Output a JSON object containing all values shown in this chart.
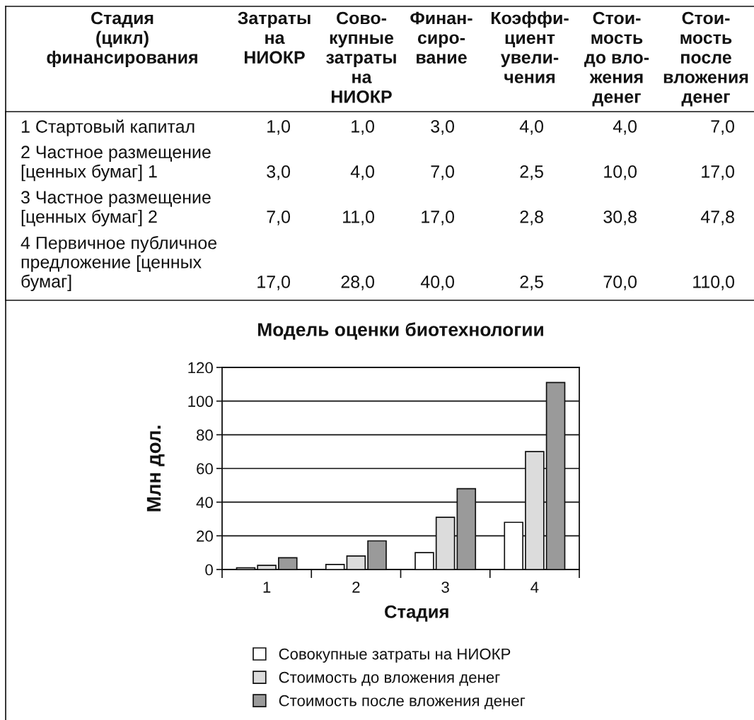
{
  "chart_data": [
    {
      "type": "other",
      "ylabel": "Стадия\n(цикл)\nфинансирования",
      "categories": [
        "Затраты\nна\nНИОКР",
        "Сово-\nкупные\nзатраты\nна\nНИОКР",
        "Финан-\nсиро-\nвание",
        "Коэффи-\nциент\nувели-\nчения",
        "Стои-\nмость\nдо вло-\nжения\nденег",
        "Стои-\nмость\nпосле\nвложения\nденег"
      ],
      "y_categories": [
        "1 Стартовый капитал",
        "2 Частное размещение\n[ценных бумаг] 1",
        "3 Частное размещение\n[ценных бумаг] 2",
        "4 Первичное публичное\nпредложение [ценных\nбумаг]"
      ],
      "cell_labels": [
        [
          "1,0",
          "1,0",
          "3,0",
          "4,0",
          "4,0",
          "7,0"
        ],
        [
          "3,0",
          "4,0",
          "7,0",
          "2,5",
          "10,0",
          "17,0"
        ],
        [
          "7,0",
          "11,0",
          "17,0",
          "2,8",
          "30,8",
          "47,8"
        ],
        [
          "17,0",
          "28,0",
          "40,0",
          "2,5",
          "70,0",
          "110,0"
        ]
      ]
    },
    {
      "type": "bar",
      "title": "Модель оценки биотехнологии",
      "xlabel": "Стадия",
      "ylabel": "Млн дол.",
      "categories": [
        "1",
        "2",
        "3",
        "4"
      ],
      "series": [
        {
          "name": "Совокупные затраты на НИОКР",
          "color": "#ffffff",
          "values": [
            1,
            3,
            10,
            28
          ]
        },
        {
          "name": "Стоимость до вложения денег",
          "color": "#dcdcdc",
          "values": [
            2.5,
            8,
            31,
            70
          ]
        },
        {
          "name": "Стоимость после вложения денег",
          "color": "#9a9a9a",
          "values": [
            7,
            17,
            48,
            111
          ]
        }
      ],
      "ylim": [
        0,
        120
      ],
      "yticks": [
        0,
        20,
        40,
        60,
        80,
        100,
        120
      ],
      "grid": "y",
      "legend": "bottom"
    }
  ]
}
